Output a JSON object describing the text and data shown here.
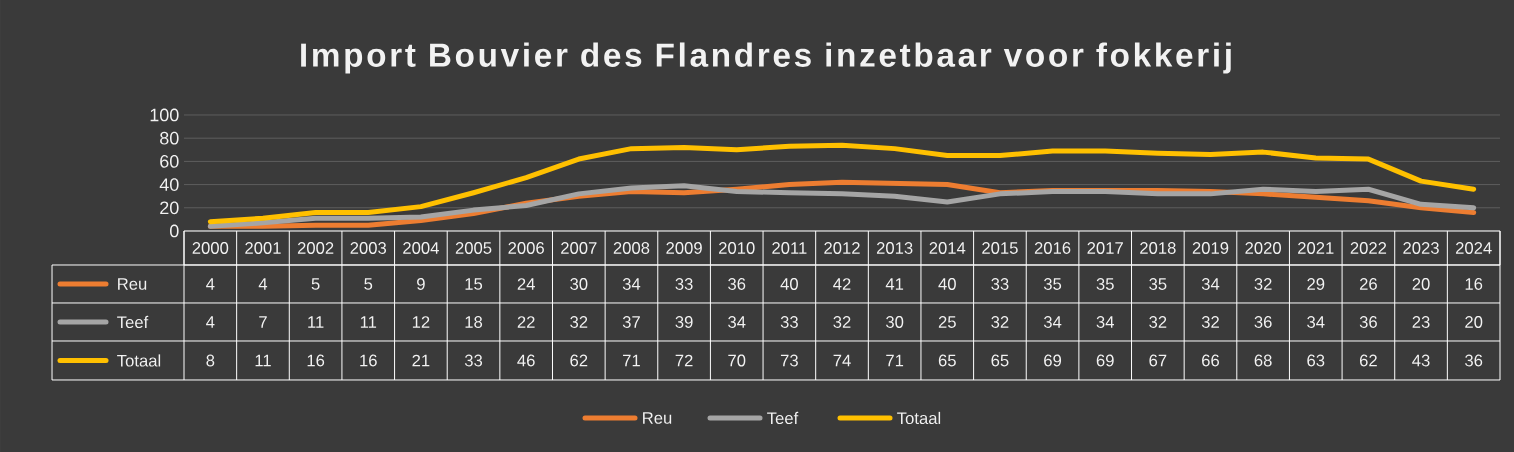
{
  "chart_data": {
    "type": "line",
    "title": "Import Bouvier des Flandres inzetbaar voor fokkerij",
    "categories": [
      "2000",
      "2001",
      "2002",
      "2003",
      "2004",
      "2005",
      "2006",
      "2007",
      "2008",
      "2009",
      "2010",
      "2011",
      "2012",
      "2013",
      "2014",
      "2015",
      "2016",
      "2017",
      "2018",
      "2019",
      "2020",
      "2021",
      "2022",
      "2023",
      "2024"
    ],
    "series": [
      {
        "name": "Reu",
        "color": "#ed7d31",
        "values": [
          4,
          4,
          5,
          5,
          9,
          15,
          24,
          30,
          34,
          33,
          36,
          40,
          42,
          41,
          40,
          33,
          35,
          35,
          35,
          34,
          32,
          29,
          26,
          20,
          16
        ]
      },
      {
        "name": "Teef",
        "color": "#a5a5a5",
        "values": [
          4,
          7,
          11,
          11,
          12,
          18,
          22,
          32,
          37,
          39,
          34,
          33,
          32,
          30,
          25,
          32,
          34,
          34,
          32,
          32,
          36,
          34,
          36,
          23,
          20
        ]
      },
      {
        "name": "Totaal",
        "color": "#ffc000",
        "values": [
          8,
          11,
          16,
          16,
          21,
          33,
          46,
          62,
          71,
          72,
          70,
          73,
          74,
          71,
          65,
          65,
          69,
          69,
          67,
          66,
          68,
          63,
          62,
          43,
          36
        ]
      }
    ],
    "ylim": [
      0,
      100
    ],
    "yticks": [
      0,
      20,
      40,
      60,
      80,
      100
    ],
    "grid": "y",
    "legend": "bottom",
    "data_labels": true
  }
}
